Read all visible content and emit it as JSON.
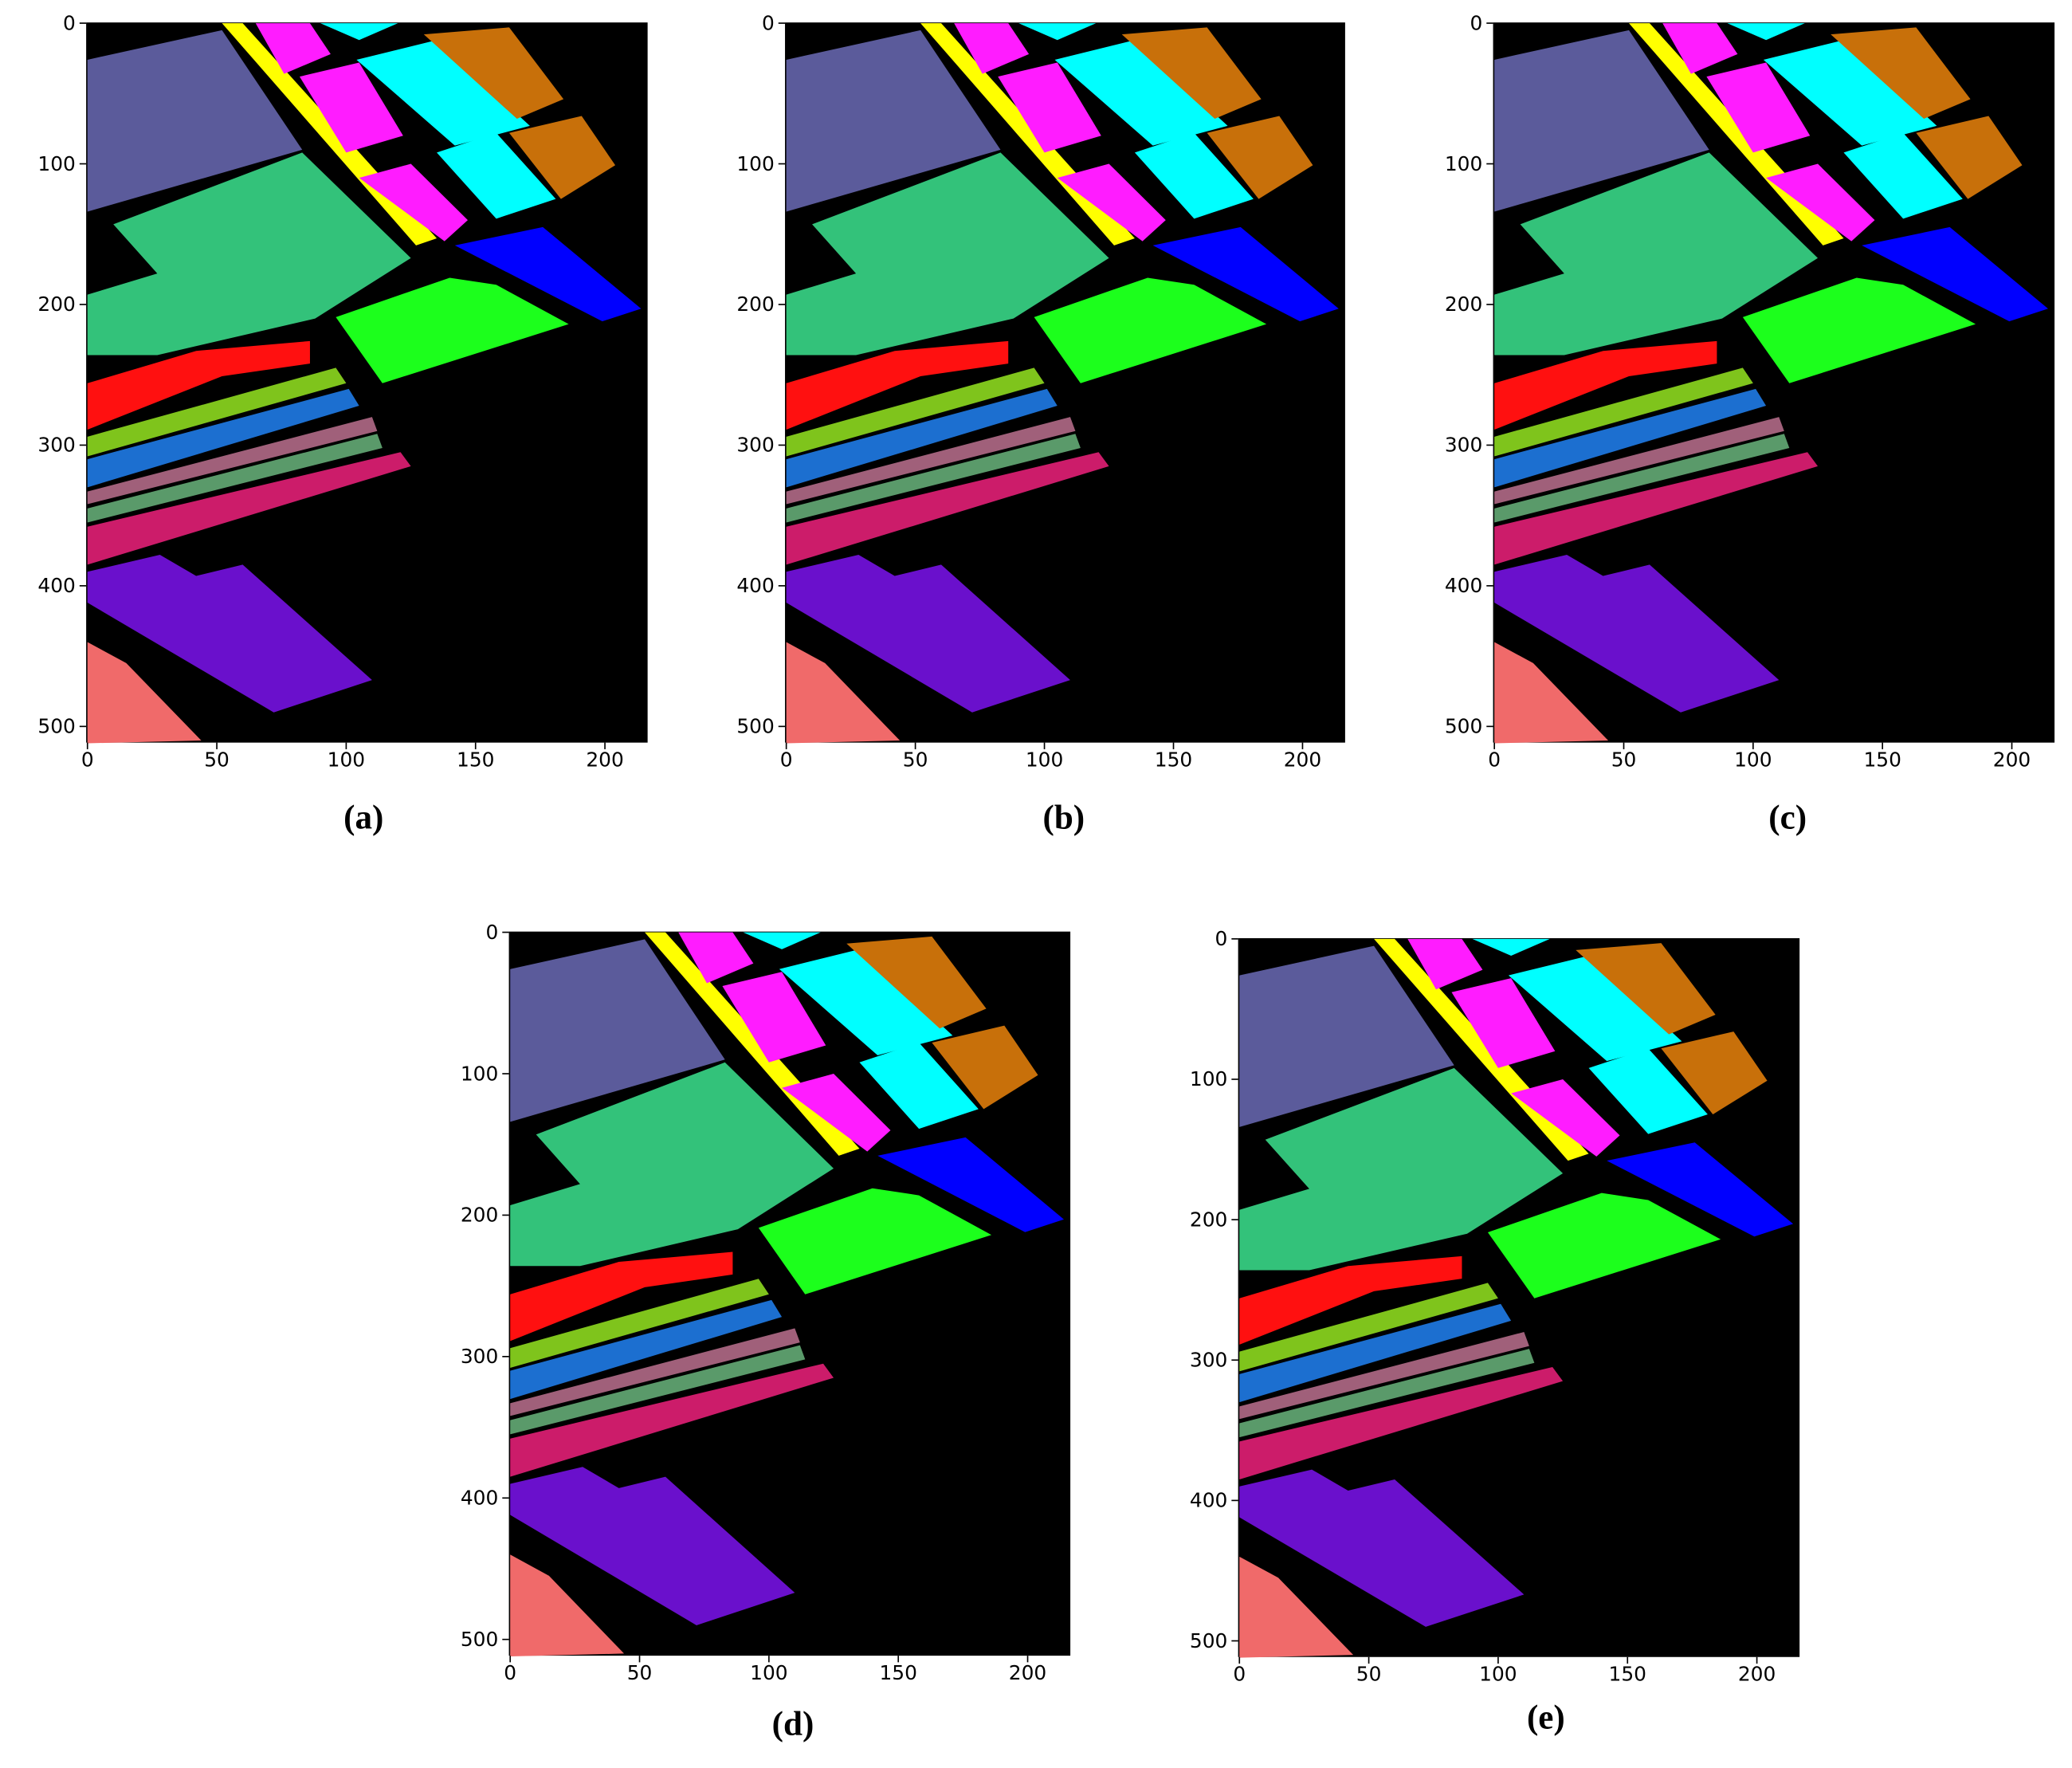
{
  "chart_data": [
    {
      "type": "image",
      "caption": "(a)",
      "xlim": [
        -0.5,
        216.5
      ],
      "ylim": [
        511.5,
        -0.5
      ],
      "xticks": [
        0,
        50,
        100,
        150,
        200
      ],
      "yticks": [
        0,
        100,
        200,
        300,
        400,
        500
      ]
    },
    {
      "type": "image",
      "caption": "(b)",
      "xlim": [
        -0.5,
        216.5
      ],
      "ylim": [
        511.5,
        -0.5
      ],
      "xticks": [
        0,
        50,
        100,
        150,
        200
      ],
      "yticks": [
        0,
        100,
        200,
        300,
        400,
        500
      ]
    },
    {
      "type": "image",
      "caption": "(c)",
      "xlim": [
        -0.5,
        216.5
      ],
      "ylim": [
        511.5,
        -0.5
      ],
      "xticks": [
        0,
        50,
        100,
        150,
        200
      ],
      "yticks": [
        0,
        100,
        200,
        300,
        400,
        500
      ]
    },
    {
      "type": "image",
      "caption": "(d)",
      "xlim": [
        -0.5,
        216.5
      ],
      "ylim": [
        511.5,
        -0.5
      ],
      "xticks": [
        0,
        50,
        100,
        150,
        200
      ],
      "yticks": [
        0,
        100,
        200,
        300,
        400,
        500
      ]
    },
    {
      "type": "image",
      "caption": "(e)",
      "xlim": [
        -0.5,
        216.5
      ],
      "ylim": [
        511.5,
        -0.5
      ],
      "xticks": [
        0,
        50,
        100,
        150,
        200
      ],
      "yticks": [
        0,
        100,
        200,
        300,
        400,
        500
      ]
    }
  ]
}
